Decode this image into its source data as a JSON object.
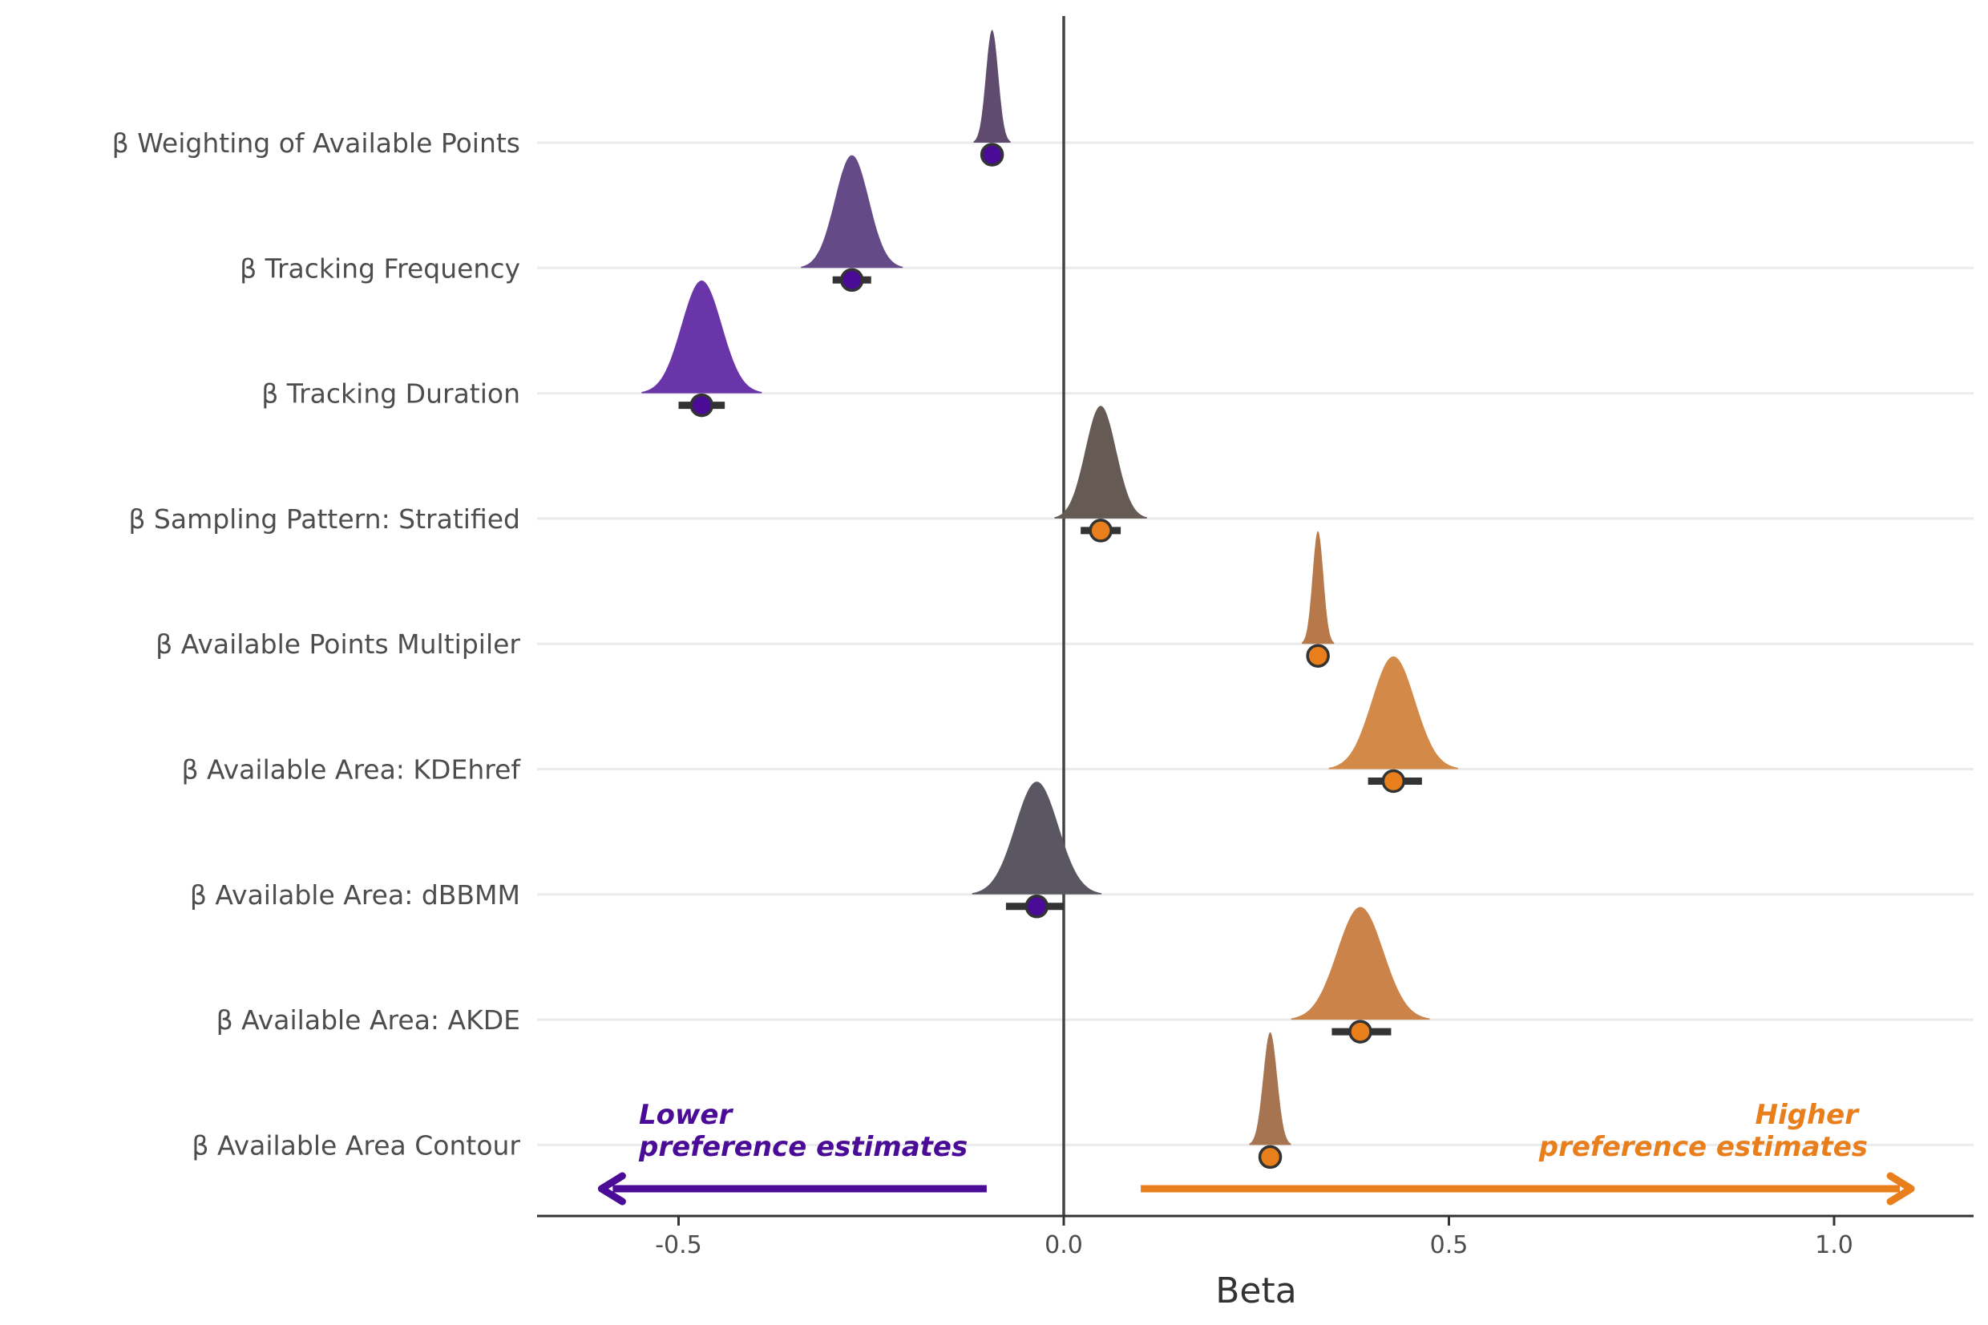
{
  "chart_data": {
    "type": "scatter",
    "title": "",
    "xlabel": "Beta",
    "ylabel": "",
    "xlim": [
      -0.68,
      1.18
    ],
    "x_ticks": [
      "-0.5",
      "0.0",
      "0.5",
      "1.0"
    ],
    "x_tick_values": [
      -0.5,
      0.0,
      0.5,
      1.0
    ],
    "grid": "horizontal",
    "reference_line_x": 0,
    "colors": {
      "negative": "#4a0b96",
      "positive": "#e87e1c",
      "interval": "#333333",
      "point_stroke": "#333333"
    },
    "categories": [
      "β Weighting of Available Points",
      "β Tracking Frequency",
      "β Tracking Duration",
      "β Sampling Pattern: Stratified",
      "β Available Points Multipiler",
      "β Available Area: KDEhref",
      "β Available Area: dBBMM",
      "β Available Area: AKDE",
      "β Available Area Contour"
    ],
    "series": [
      {
        "estimates": [
          {
            "category": "β Weighting of Available Points",
            "mean": -0.093,
            "lower": -0.1,
            "upper": -0.086,
            "spread": 0.008,
            "density_color": "#5e4b6e"
          },
          {
            "category": "β Tracking Frequency",
            "mean": -0.275,
            "lower": -0.3,
            "upper": -0.25,
            "spread": 0.022,
            "density_color": "#644a86"
          },
          {
            "category": "β Tracking Duration",
            "mean": -0.47,
            "lower": -0.5,
            "upper": -0.44,
            "spread": 0.026,
            "density_color": "#6a35a8"
          },
          {
            "category": "β Sampling Pattern: Stratified",
            "mean": 0.048,
            "lower": 0.022,
            "upper": 0.074,
            "spread": 0.02,
            "density_color": "#665a55"
          },
          {
            "category": "β Available Points Multipiler",
            "mean": 0.33,
            "lower": 0.322,
            "upper": 0.338,
            "spread": 0.007,
            "density_color": "#b8794a"
          },
          {
            "category": "β Available Area: KDEhref",
            "mean": 0.428,
            "lower": 0.395,
            "upper": 0.465,
            "spread": 0.028,
            "density_color": "#d38a48"
          },
          {
            "category": "β Available Area: dBBMM",
            "mean": -0.035,
            "lower": -0.075,
            "upper": 0.0,
            "spread": 0.028,
            "density_color": "#5b5762"
          },
          {
            "category": "β Available Area: AKDE",
            "mean": 0.385,
            "lower": 0.348,
            "upper": 0.425,
            "spread": 0.03,
            "density_color": "#cb8349"
          },
          {
            "category": "β Available Area Contour",
            "mean": 0.268,
            "lower": 0.258,
            "upper": 0.278,
            "spread": 0.009,
            "density_color": "#a67450"
          }
        ]
      }
    ],
    "annotations": {
      "lower_line1": "Lower",
      "lower_line2": "preference estimates",
      "higher_line1": "Higher",
      "higher_line2": "preference estimates",
      "lower_arrow": {
        "from": -0.1,
        "to": -0.6
      },
      "higher_arrow": {
        "from": 0.1,
        "to": 1.1
      }
    }
  }
}
